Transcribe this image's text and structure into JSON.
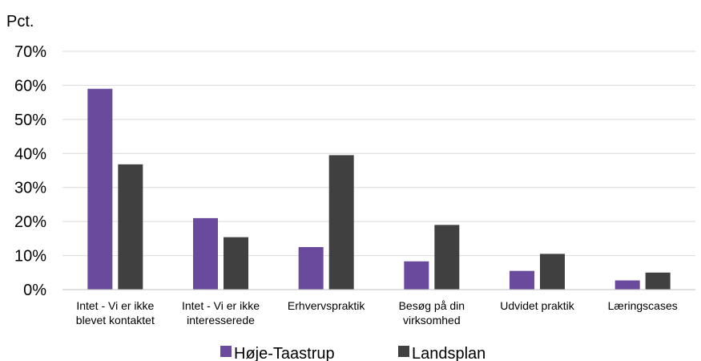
{
  "chart_data": {
    "type": "bar",
    "title": "",
    "ylabel": "Pct.",
    "xlabel": "",
    "ylim": [
      0,
      70
    ],
    "yticks": [
      "0%",
      "10%",
      "20%",
      "30%",
      "40%",
      "50%",
      "60%",
      "70%"
    ],
    "grid": true,
    "legend_position": "bottom",
    "categories": [
      [
        "Intet - Vi er ikke",
        "blevet kontaktet"
      ],
      [
        "Intet - Vi er ikke",
        "interesserede"
      ],
      [
        "Erhvervspraktik"
      ],
      [
        "Besøg på din",
        "virksomhed"
      ],
      [
        "Udvidet praktik"
      ],
      [
        "Læringscases"
      ]
    ],
    "series": [
      {
        "name": "Høje-Taastrup",
        "color": "#6a4a9c",
        "values": [
          59,
          21,
          12.5,
          8.3,
          5.5,
          2.7
        ]
      },
      {
        "name": "Landsplan",
        "color": "#404040",
        "values": [
          36.8,
          15.4,
          39.5,
          19,
          10.5,
          5
        ]
      }
    ]
  }
}
